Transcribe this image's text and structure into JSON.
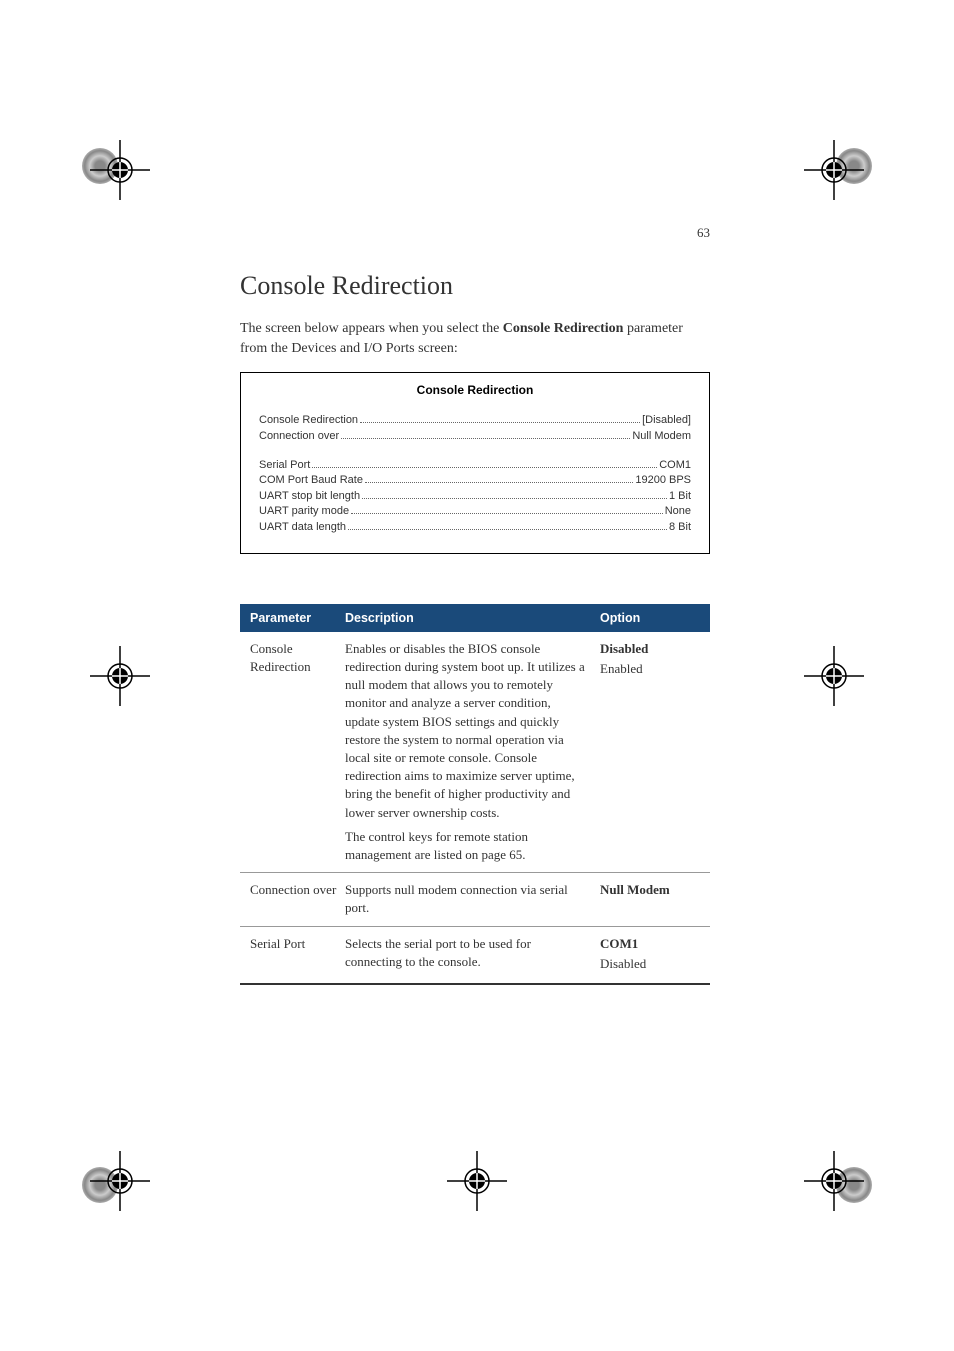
{
  "page_number": "63",
  "heading": "Console Redirection",
  "intro_before": "The screen below appears when you select the ",
  "intro_bold": "Console Redirection",
  "intro_after": " parameter from the Devices and I/O Ports screen:",
  "bios": {
    "title": "Console Redirection",
    "group1": [
      {
        "label": "Console Redirection",
        "value": "[Disabled]"
      },
      {
        "label": "Connection over",
        "value": "Null Modem"
      }
    ],
    "group2": [
      {
        "label": "Serial Port",
        "value": "COM1"
      },
      {
        "label": "COM Port Baud Rate",
        "value": "19200 BPS"
      },
      {
        "label": "UART stop bit length",
        "value": "1 Bit"
      },
      {
        "label": "UART parity mode",
        "value": "None"
      },
      {
        "label": "UART data length",
        "value": "8 Bit"
      }
    ]
  },
  "table": {
    "headers": {
      "param": "Parameter",
      "desc": "Description",
      "opt": "Option"
    },
    "rows": [
      {
        "param": "Console Redirection",
        "desc1": "Enables or disables the BIOS console redirection during system boot up. It utilizes a null modem that allows you to remotely monitor and analyze a server condition, update system BIOS settings and quickly restore the system to normal operation via local site or remote console.\nConsole redirection aims to maximize server uptime, bring the benefit of higher productivity and lower server ownership costs.",
        "desc2": "The control keys for remote station management are listed on page 65.",
        "opts": [
          {
            "t": "Disabled",
            "b": true
          },
          {
            "t": "Enabled",
            "b": false
          }
        ]
      },
      {
        "param": "Connection over",
        "desc1": "Supports null modem connection via serial port.",
        "desc2": "",
        "opts": [
          {
            "t": "Null Modem",
            "b": true
          }
        ]
      },
      {
        "param": "Serial Port",
        "desc1": "Selects the serial port to be used for connecting to the console.",
        "desc2": "",
        "opts": [
          {
            "t": "COM1",
            "b": true
          },
          {
            "t": "Disabled",
            "b": false
          }
        ]
      }
    ]
  },
  "colors": {
    "header_bg": "#1a4a7a",
    "header_fg": "#ffffff",
    "text": "#333333",
    "border": "#999999"
  }
}
